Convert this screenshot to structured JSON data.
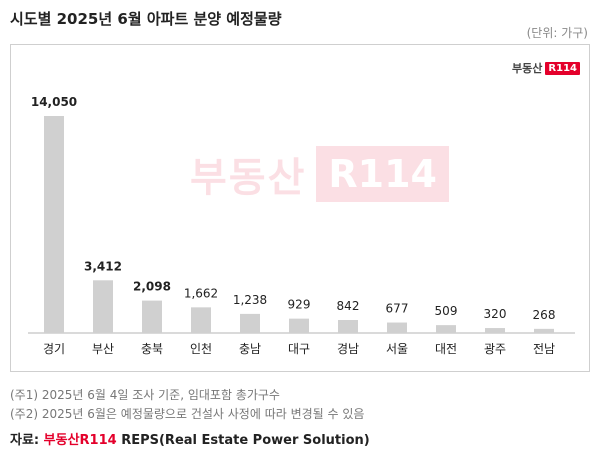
{
  "header": {
    "title": "시도별 2025년 6월 아파트 분양 예정물량",
    "unit": "(단위: 가구)"
  },
  "logo": {
    "text": "부동산",
    "box": "R114"
  },
  "watermark": {
    "text": "부동산",
    "box": "R114"
  },
  "chart_data": {
    "type": "bar",
    "title": "시도별 2025년 6월 아파트 분양 예정물량",
    "xlabel": "",
    "ylabel": "",
    "unit": "(단위: 가구)",
    "categories": [
      "경기",
      "부산",
      "충북",
      "인천",
      "충남",
      "대구",
      "경남",
      "서울",
      "대전",
      "광주",
      "전남"
    ],
    "values": [
      14050,
      3412,
      2098,
      1662,
      1238,
      929,
      842,
      677,
      509,
      320,
      268
    ],
    "value_labels": [
      "14,050",
      "3,412",
      "2,098",
      "1,662",
      "1,238",
      "929",
      "842",
      "677",
      "509",
      "320",
      "268"
    ],
    "bold_labels": [
      true,
      true,
      true,
      false,
      false,
      false,
      false,
      false,
      false,
      false,
      false
    ],
    "ylim": [
      0,
      14050
    ],
    "grid": false,
    "bar_color": "#d0d0d0"
  },
  "notes": {
    "note1": "(주1) 2025년 6월 4일 조사 기준, 임대포함 총가구수",
    "note2": "(주2) 2025년 6월은 예정물량으로 건설사 사정에 따라 변경될 수 있음"
  },
  "source": {
    "prefix": "자료: ",
    "brand": "부동산R114",
    "rest": " REPS(Real Estate Power Solution)"
  }
}
